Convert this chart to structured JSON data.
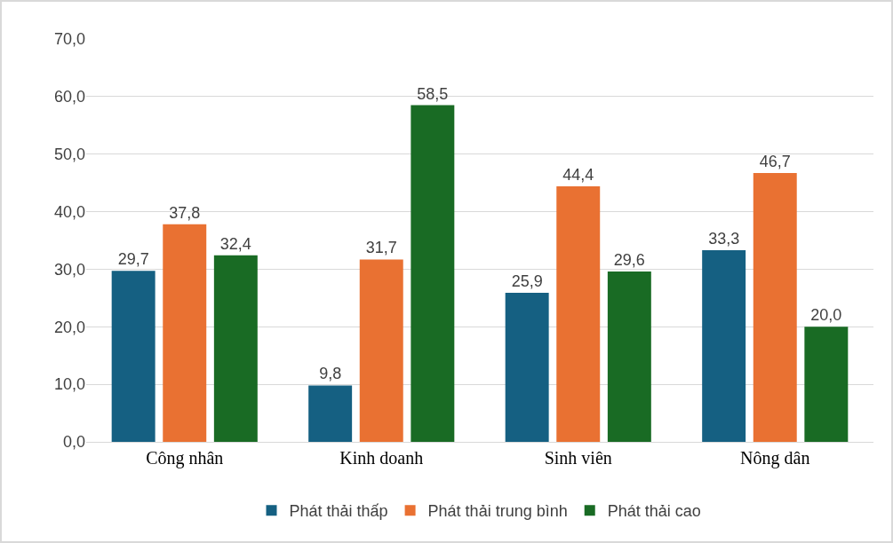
{
  "chart_data": {
    "type": "bar",
    "categories": [
      "Công nhân",
      "Kinh doanh",
      "Sinh viên",
      "Nông dân"
    ],
    "series": [
      {
        "name": "Phát thải thấp",
        "color": "#156082",
        "values": [
          29.7,
          9.8,
          25.9,
          33.3
        ],
        "value_labels": [
          "29,7",
          "9,8",
          "25,9",
          "33,3"
        ]
      },
      {
        "name": "Phát thải trung bình",
        "color": "#e97132",
        "values": [
          37.8,
          31.7,
          44.4,
          46.7
        ],
        "value_labels": [
          "37,8",
          "31,7",
          "44,4",
          "46,7"
        ]
      },
      {
        "name": "Phát thải cao",
        "color": "#196b24",
        "values": [
          32.4,
          58.5,
          29.6,
          20.0
        ],
        "value_labels": [
          "32,4",
          "58,5",
          "29,6",
          "20,0"
        ]
      }
    ],
    "ylim": [
      0,
      70
    ],
    "yticks": [
      {
        "value": 0,
        "label": "0,0"
      },
      {
        "value": 10,
        "label": "10,0"
      },
      {
        "value": 20,
        "label": "20,0"
      },
      {
        "value": 30,
        "label": "30,0"
      },
      {
        "value": 40,
        "label": "40,0"
      },
      {
        "value": 50,
        "label": "50,0"
      },
      {
        "value": 60,
        "label": "60,0"
      },
      {
        "value": 70,
        "label": "70,0"
      }
    ],
    "grid": "y",
    "legend": "bottom"
  }
}
